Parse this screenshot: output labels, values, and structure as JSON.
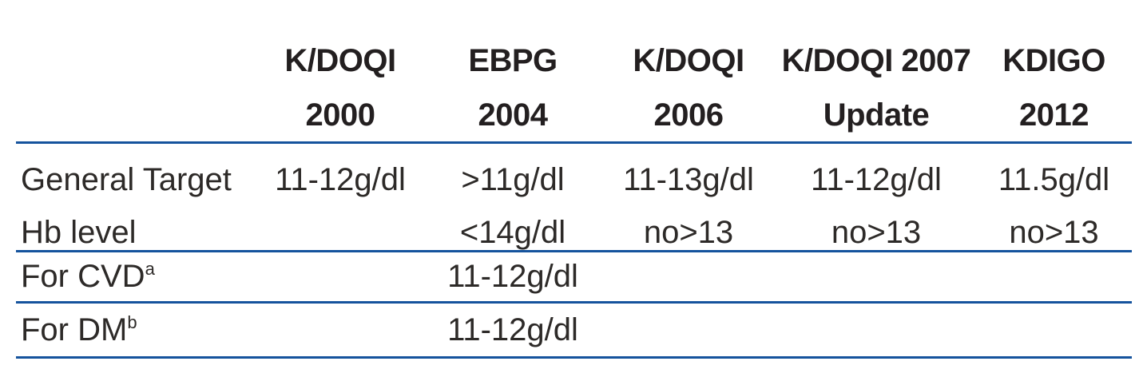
{
  "table": {
    "rule_color": "#15539d",
    "header_text_color": "#231f20",
    "body_text_color": "#2d2a28",
    "header": [
      {
        "line1": "K/DOQI",
        "line2": "2000"
      },
      {
        "line1": "EBPG",
        "line2": "2004"
      },
      {
        "line1": "K/DOQI",
        "line2": "2006"
      },
      {
        "line1": "K/DOQI 2007",
        "line2": "Update"
      },
      {
        "line1": "KDIGO",
        "line2": "2012"
      }
    ],
    "rows": [
      {
        "label_line1": "General Target",
        "label_line2": "Hb level",
        "values_line1": [
          "11-12g/dl",
          ">11g/dl",
          "11-13g/dl",
          "11-12g/dl",
          "11.5g/dl"
        ],
        "values_line2": [
          "",
          "<14g/dl",
          "no>13",
          "no>13",
          "no>13"
        ]
      },
      {
        "label": "For CVD",
        "label_sup": "a",
        "values": [
          "",
          "11-12g/dl",
          "",
          "",
          ""
        ]
      },
      {
        "label": "For DM",
        "label_sup": "b",
        "values": [
          "",
          "11-12g/dl",
          "",
          "",
          ""
        ]
      }
    ]
  }
}
